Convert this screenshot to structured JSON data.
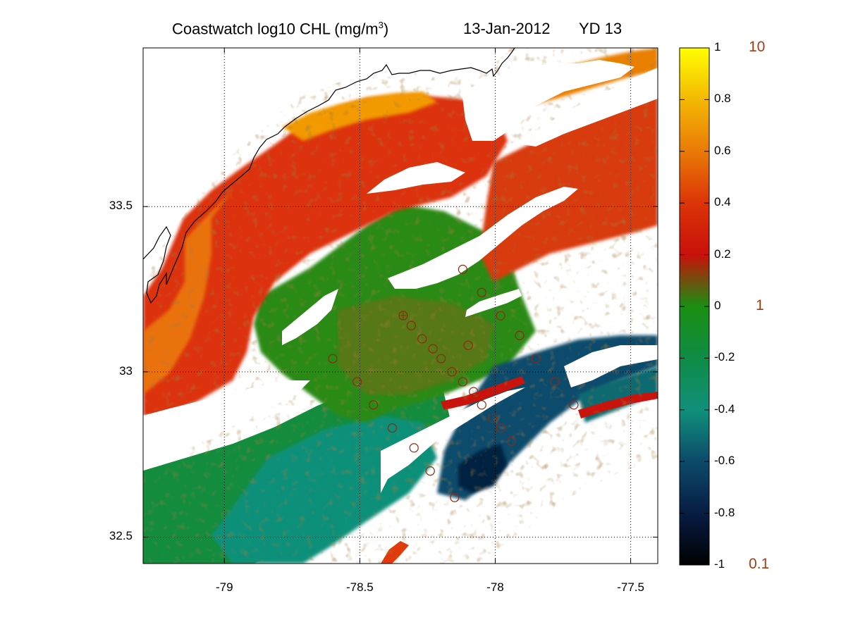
{
  "title": {
    "prefix": "Coastwatch  log10  CHL (mg/m",
    "superscript": "3",
    "suffix": ")",
    "date": "13-Jan-2012",
    "yearday": "YD 13"
  },
  "map": {
    "lon_range": [
      -79.3,
      -77.4
    ],
    "lat_range": [
      32.42,
      33.98
    ],
    "x_ticks": [
      {
        "value": -79.0,
        "label": "-79"
      },
      {
        "value": -78.5,
        "label": "-78.5"
      },
      {
        "value": -78.0,
        "label": "-78"
      },
      {
        "value": -77.5,
        "label": "-77.5"
      }
    ],
    "y_ticks": [
      {
        "value": 33.5,
        "label": "33.5"
      },
      {
        "value": 33.0,
        "label": "33"
      },
      {
        "value": 32.5,
        "label": "32.5"
      }
    ],
    "grid": "dotted",
    "variable": "log10 chlorophyll",
    "colors": {
      "land": "#ffffff",
      "cloud_mask": "#ffffff",
      "coastline": "#000000",
      "station_marker": "#8b2a10"
    },
    "stations": [
      {
        "lon": -78.1,
        "lat": 33.08
      },
      {
        "lon": -78.34,
        "lat": 33.17
      },
      {
        "lon": -78.31,
        "lat": 33.14
      },
      {
        "lon": -78.27,
        "lat": 33.1
      },
      {
        "lon": -78.23,
        "lat": 33.07
      },
      {
        "lon": -78.2,
        "lat": 33.04
      },
      {
        "lon": -78.16,
        "lat": 33.0
      },
      {
        "lon": -78.12,
        "lat": 32.97
      },
      {
        "lon": -78.08,
        "lat": 32.94
      },
      {
        "lon": -78.05,
        "lat": 32.9
      },
      {
        "lon": -78.01,
        "lat": 32.86
      },
      {
        "lon": -77.98,
        "lat": 32.83
      },
      {
        "lon": -77.94,
        "lat": 32.79
      },
      {
        "lon": -78.6,
        "lat": 33.04
      },
      {
        "lon": -78.51,
        "lat": 32.97
      },
      {
        "lon": -78.45,
        "lat": 32.9
      },
      {
        "lon": -78.38,
        "lat": 32.83
      },
      {
        "lon": -78.3,
        "lat": 32.77
      },
      {
        "lon": -78.24,
        "lat": 32.7
      },
      {
        "lon": -78.15,
        "lat": 32.62
      },
      {
        "lon": -78.12,
        "lat": 33.31
      },
      {
        "lon": -78.05,
        "lat": 33.24
      },
      {
        "lon": -77.98,
        "lat": 33.17
      },
      {
        "lon": -77.91,
        "lat": 33.11
      },
      {
        "lon": -77.85,
        "lat": 33.04
      },
      {
        "lon": -77.78,
        "lat": 32.97
      },
      {
        "lon": -77.71,
        "lat": 32.9
      }
    ]
  },
  "colorbar": {
    "range": [
      -1,
      1
    ],
    "ticks": [
      {
        "value": 1,
        "label": "1"
      },
      {
        "value": 0.8,
        "label": "0.8"
      },
      {
        "value": 0.6,
        "label": "0.6"
      },
      {
        "value": 0.4,
        "label": "0.4"
      },
      {
        "value": 0.2,
        "label": "0.2"
      },
      {
        "value": 0,
        "label": "0"
      },
      {
        "value": -0.2,
        "label": "-0.2"
      },
      {
        "value": -0.4,
        "label": "-0.4"
      },
      {
        "value": -0.6,
        "label": "-0.6"
      },
      {
        "value": -0.8,
        "label": "-0.8"
      },
      {
        "value": -1,
        "label": "-1"
      }
    ],
    "linear_labels": [
      {
        "value": 1,
        "label": "10"
      },
      {
        "value": 0,
        "label": "1"
      },
      {
        "value": -1,
        "label": "0.1"
      }
    ],
    "stops": [
      {
        "value": -1.0,
        "color": "#000000"
      },
      {
        "value": -0.8,
        "color": "#081c44"
      },
      {
        "value": -0.6,
        "color": "#0c4a6a"
      },
      {
        "value": -0.4,
        "color": "#10907a"
      },
      {
        "value": -0.2,
        "color": "#0f8c46"
      },
      {
        "value": 0.0,
        "color": "#1a8f12"
      },
      {
        "value": 0.2,
        "color": "#c8100a"
      },
      {
        "value": 0.4,
        "color": "#dc3408"
      },
      {
        "value": 0.6,
        "color": "#ea7a06"
      },
      {
        "value": 0.8,
        "color": "#f3b804"
      },
      {
        "value": 1.0,
        "color": "#ffff00"
      }
    ]
  }
}
